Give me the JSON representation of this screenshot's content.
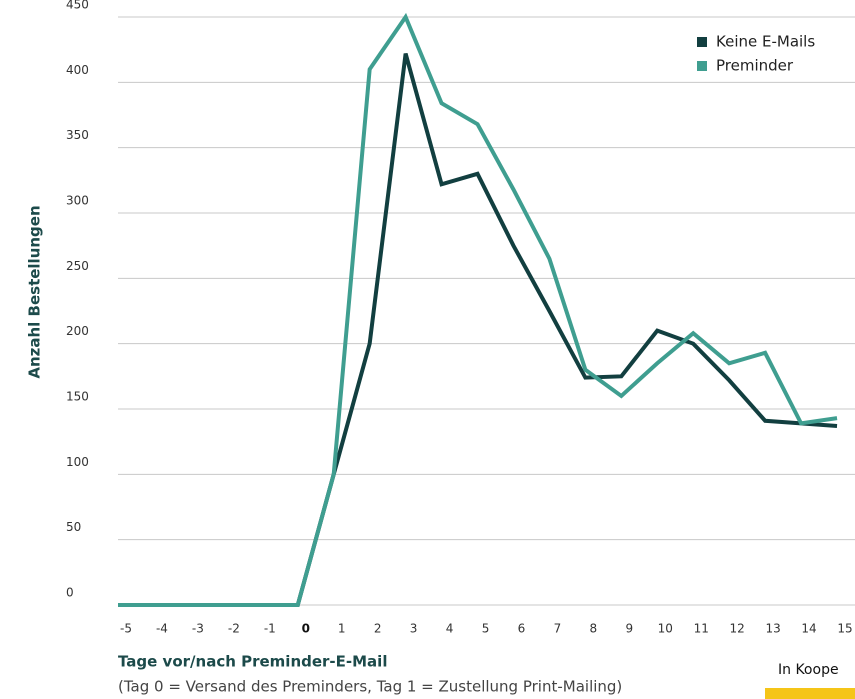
{
  "chart_data": {
    "type": "line",
    "y_label": "Anzahl Bestellungen",
    "x_label": "Tage vor/nach Preminder-E-Mail",
    "x_note": "(Tag 0 = Versand des Preminders, Tag 1 = Zustellung Print-Mailing)",
    "categories": [
      "-5",
      "-4",
      "-3",
      "-2",
      "-1",
      "0",
      "1",
      "2",
      "3",
      "4",
      "5",
      "6",
      "7",
      "8",
      "9",
      "10",
      "11",
      "12",
      "13",
      "14",
      "15"
    ],
    "series": [
      {
        "name": "Keine E-Mails",
        "color": "#123f40",
        "values": [
          0,
          0,
          0,
          0,
          0,
          0,
          100,
          200,
          422,
          322,
          330,
          275,
          225,
          174,
          175,
          210,
          200,
          172,
          141,
          139,
          137
        ]
      },
      {
        "name": "Preminder",
        "color": "#3f9e90",
        "values": [
          0,
          0,
          0,
          0,
          0,
          0,
          100,
          410,
          450,
          384,
          368,
          318,
          265,
          180,
          160,
          185,
          208,
          185,
          193,
          139,
          143
        ]
      }
    ],
    "ylim": [
      0,
      450
    ],
    "yticks": [
      0,
      50,
      100,
      150,
      200,
      250,
      300,
      350,
      400,
      450
    ],
    "grid": true,
    "legend": "top-right",
    "footer": "In Koope"
  }
}
